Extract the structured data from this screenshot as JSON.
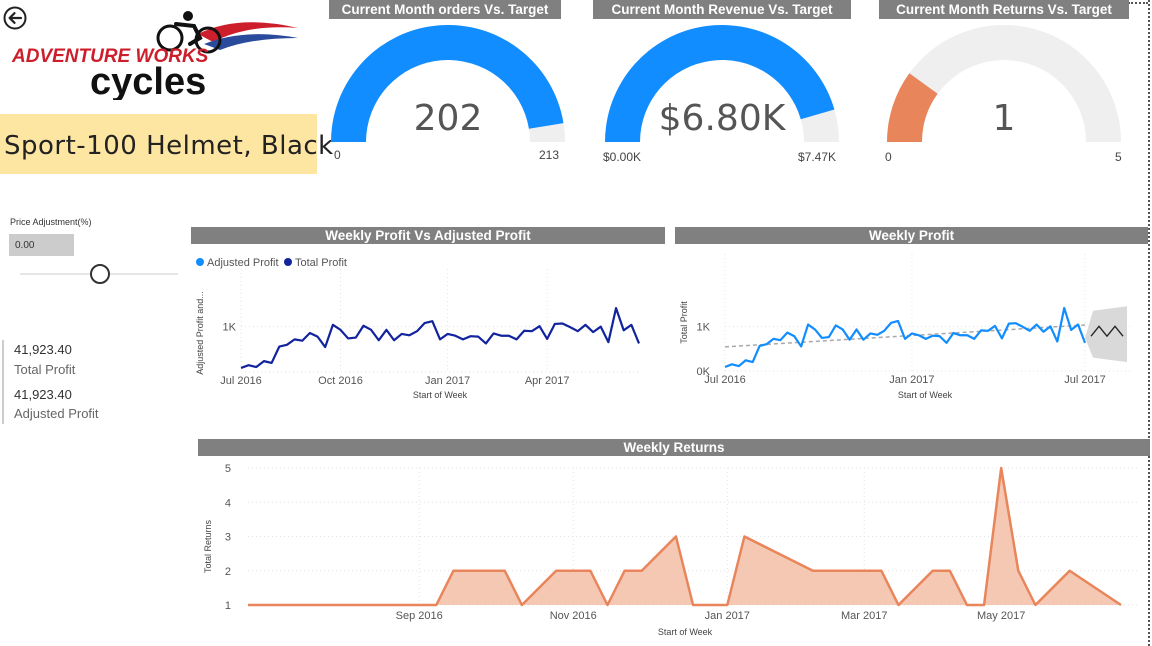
{
  "product": {
    "name": "Sport-100 Helmet, Black"
  },
  "logo": {
    "line1": "ADVENTURE WORKS",
    "line2": "cycles"
  },
  "gauges": [
    {
      "title": "Current Month orders Vs. Target",
      "value": 202,
      "value_label": "202",
      "min_label": "0",
      "max_label": "213",
      "max": 213,
      "color": "#118dff"
    },
    {
      "title": "Current Month Revenue Vs. Target",
      "value": 6.8,
      "value_label": "$6.80K",
      "min_label": "$0.00K",
      "max_label": "$7.47K",
      "max": 7.47,
      "color": "#118dff"
    },
    {
      "title": "Current Month Returns Vs. Target",
      "value": 1,
      "value_label": "1",
      "min_label": "0",
      "max_label": "5",
      "max": 5,
      "color": "#e8855a"
    }
  ],
  "slicer": {
    "label": "Price Adjustment(%)",
    "value": "0.00",
    "position": 0.5
  },
  "kpis": [
    {
      "value": "41,923.40",
      "label": "Total Profit"
    },
    {
      "value": "41,923.40",
      "label": "Adjusted Profit"
    }
  ],
  "chart_data": [
    {
      "type": "line",
      "title": "Weekly Profit Vs Adjusted Profit",
      "legend": [
        "Adjusted Profit",
        "Total Profit"
      ],
      "legend_colors": [
        "#118dff",
        "#12239e"
      ],
      "legend_position": "top-left",
      "xlabel": "Start of Week",
      "ylabel": "Adjusted Profit and...",
      "x_ticks": [
        "Jul 2016",
        "Oct 2016",
        "Jan 2017",
        "Apr 2017"
      ],
      "y_ticks": [
        "1K"
      ],
      "ylim": [
        0,
        1500
      ],
      "series": [
        {
          "name": "Total Profit",
          "color": "#12239e",
          "values": [
            90,
            150,
            110,
            240,
            200,
            560,
            600,
            720,
            690,
            860,
            780,
            550,
            1040,
            930,
            740,
            760,
            1020,
            930,
            700,
            930,
            700,
            840,
            810,
            900,
            1080,
            1120,
            720,
            840,
            800,
            720,
            790,
            780,
            630,
            850,
            800,
            800,
            720,
            910,
            900,
            1010,
            730,
            1060,
            1070,
            990,
            900,
            1040,
            880,
            1000,
            660,
            1410,
            920,
            1040,
            630
          ]
        }
      ]
    },
    {
      "type": "line",
      "title": "Weekly Profit",
      "xlabel": "Start of Week",
      "ylabel": "Total Profit",
      "x_ticks": [
        "Jul 2016",
        "Jan 2017",
        "Jul 2017"
      ],
      "y_ticks": [
        "0K",
        "1K"
      ],
      "ylim": [
        0,
        1500
      ],
      "series": [
        {
          "name": "Total Profit",
          "color": "#118dff",
          "values": [
            90,
            150,
            110,
            240,
            200,
            560,
            600,
            720,
            690,
            860,
            780,
            550,
            1040,
            930,
            740,
            760,
            1020,
            930,
            700,
            930,
            700,
            840,
            810,
            900,
            1080,
            1120,
            720,
            840,
            800,
            720,
            790,
            780,
            630,
            850,
            800,
            800,
            720,
            910,
            900,
            1010,
            730,
            1060,
            1070,
            990,
            900,
            1040,
            880,
            1000,
            660,
            1410,
            920,
            1040,
            630
          ]
        }
      ],
      "trend": {
        "from": 540,
        "to": 1030
      },
      "forecast": {
        "values": [
          780,
          1000,
          780,
          1000,
          780
        ]
      }
    },
    {
      "type": "area",
      "title": "Weekly Returns",
      "xlabel": "Start of Week",
      "ylabel": "Total Returns",
      "x_ticks": [
        "Sep 2016",
        "Nov 2016",
        "Jan 2017",
        "Mar 2017",
        "May 2017"
      ],
      "y_ticks": [
        "1",
        "2",
        "3",
        "4",
        "5"
      ],
      "ylim": [
        1,
        5
      ],
      "color": "#e8855a",
      "fill": "#f5c8b4",
      "points": [
        [
          "2016-06-27",
          1
        ],
        [
          "2016-08-29",
          1
        ],
        [
          "2016-09-12",
          1
        ],
        [
          "2016-09-19",
          2
        ],
        [
          "2016-10-10",
          2
        ],
        [
          "2016-10-17",
          1
        ],
        [
          "2016-10-31",
          2
        ],
        [
          "2016-11-14",
          2
        ],
        [
          "2016-11-21",
          1
        ],
        [
          "2016-11-28",
          2
        ],
        [
          "2016-12-05",
          2
        ],
        [
          "2016-12-19",
          3
        ],
        [
          "2016-12-26",
          1
        ],
        [
          "2017-01-09",
          1
        ],
        [
          "2017-01-16",
          3
        ],
        [
          "2017-02-13",
          2
        ],
        [
          "2017-03-13",
          2
        ],
        [
          "2017-03-20",
          1
        ],
        [
          "2017-04-03",
          2
        ],
        [
          "2017-04-10",
          2
        ],
        [
          "2017-04-17",
          1
        ],
        [
          "2017-04-24",
          1
        ],
        [
          "2017-05-01",
          5
        ],
        [
          "2017-05-08",
          2
        ],
        [
          "2017-05-15",
          1
        ],
        [
          "2017-05-29",
          2
        ],
        [
          "2017-06-19",
          1
        ]
      ]
    }
  ]
}
